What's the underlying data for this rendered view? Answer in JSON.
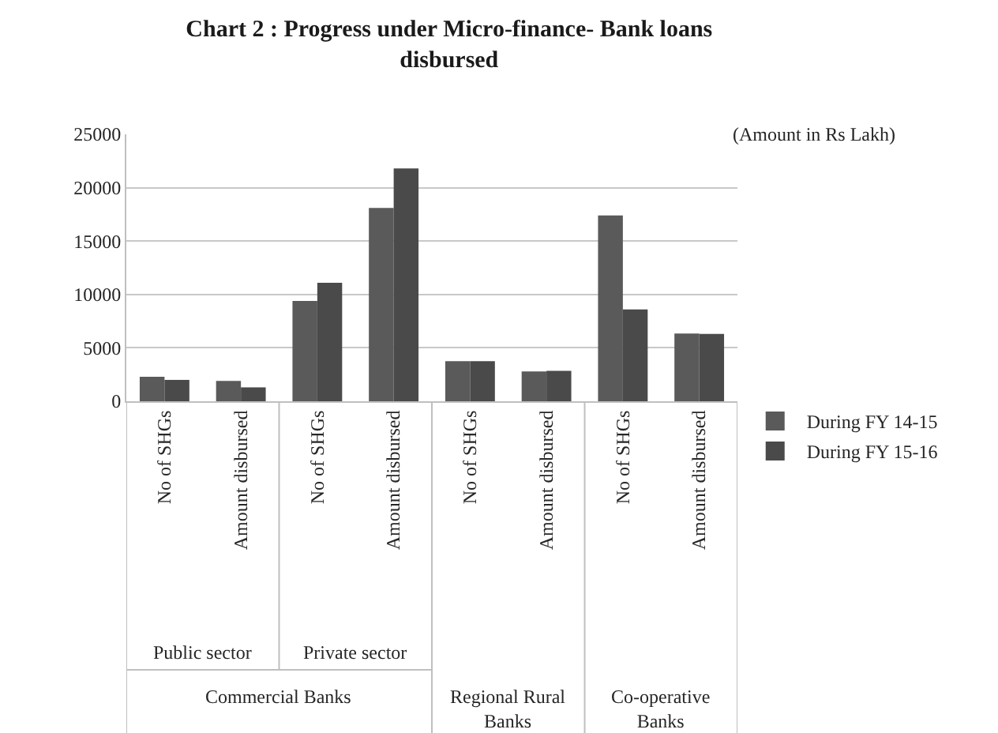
{
  "chart_data": {
    "type": "bar",
    "title": "Chart 2 : Progress under Micro-finance- Bank loans disbursed",
    "categories": [
      "No of SHGs",
      "Amount disbursed",
      "No of SHGs",
      "Amount disbursed",
      "No of SHGs",
      "Amount disbursed",
      "No of SHGs",
      "Amount disbursed"
    ],
    "series": [
      {
        "name": "During FY 14-15",
        "color": "#5a5a5a",
        "values": [
          2300,
          1900,
          9400,
          18100,
          3750,
          2800,
          17400,
          6350
        ]
      },
      {
        "name": "During FY 15-16",
        "color": "#4a4a4a",
        "values": [
          2000,
          1300,
          11100,
          21800,
          3750,
          2850,
          8600,
          6300
        ]
      }
    ],
    "annotations": [
      "(Amount in Rs Lakh)",
      "Public sector",
      "Private sector",
      "Commercial Banks",
      "Regional Rural Banks",
      "Co-operative Banks"
    ],
    "ylim": [
      0,
      25000
    ],
    "yticks": [
      0,
      5000,
      10000,
      15000,
      20000,
      25000
    ],
    "grid": "y",
    "legend": "right"
  }
}
